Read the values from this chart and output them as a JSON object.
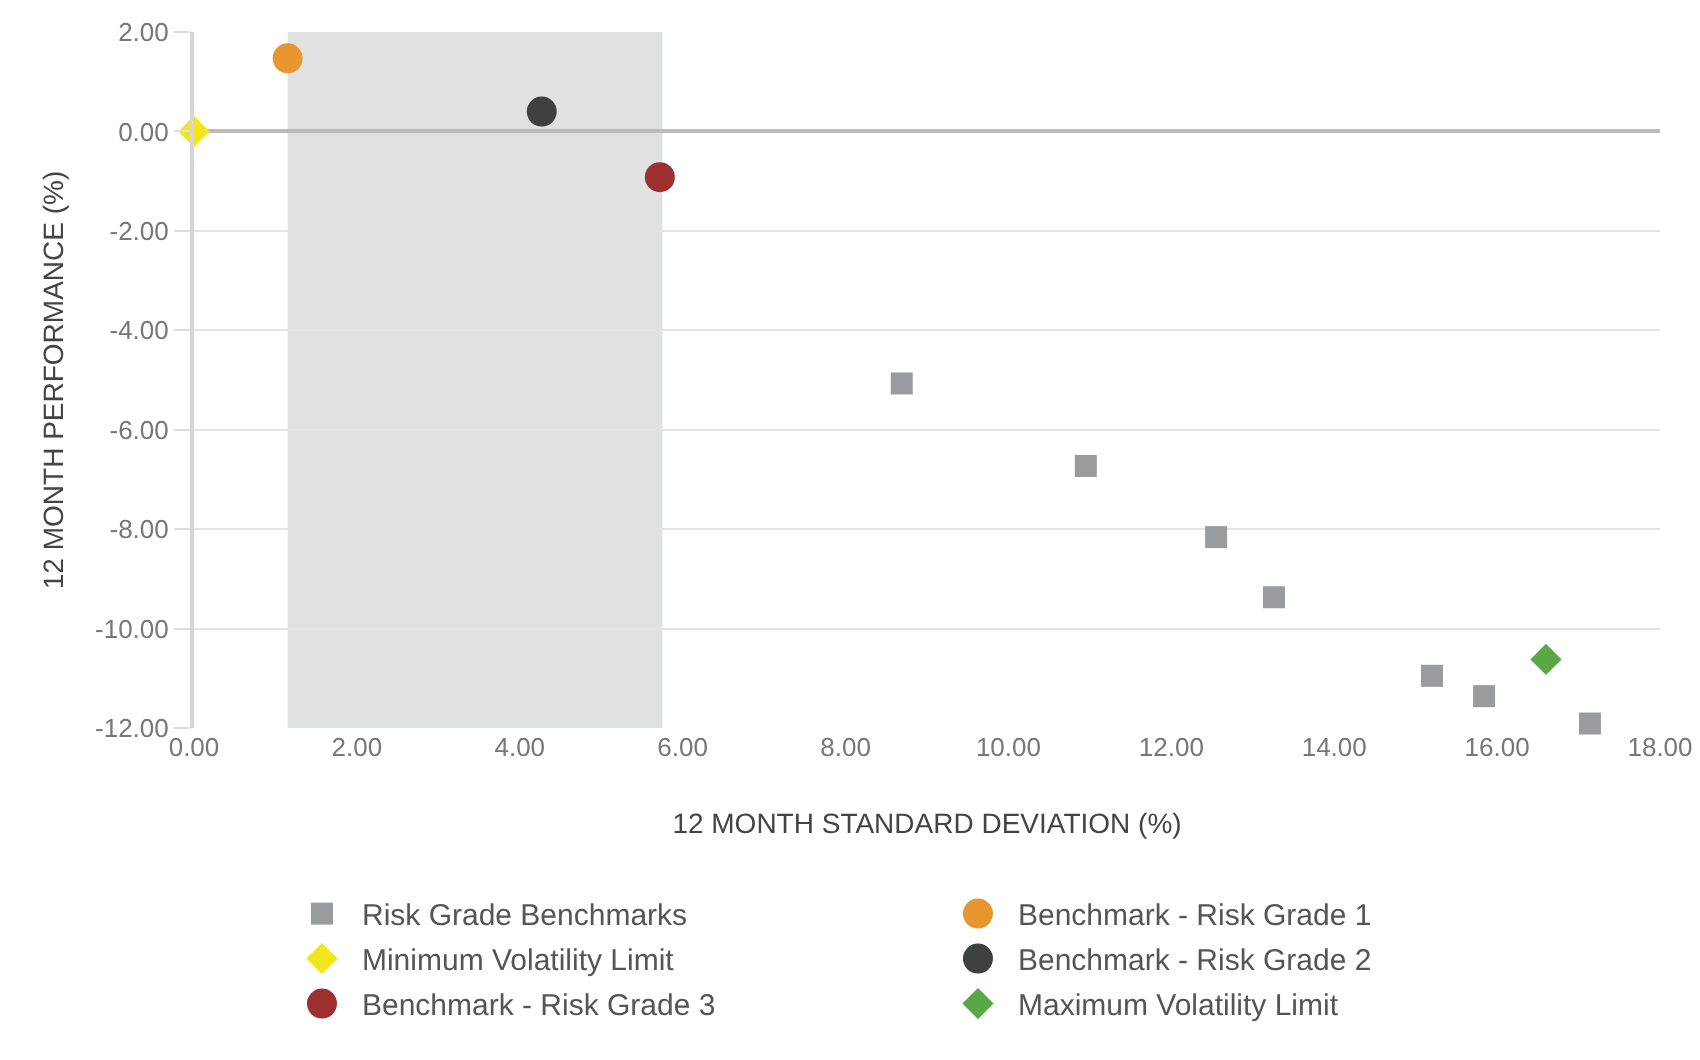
{
  "chart_data": {
    "type": "scatter",
    "xlabel": "12 MONTH STANDARD DEVIATION (%)",
    "ylabel": "12 MONTH PERFORMANCE (%)",
    "xlim": [
      0,
      18
    ],
    "ylim": [
      -12,
      2
    ],
    "xticks": [
      {
        "value": 0,
        "label": "0.00"
      },
      {
        "value": 2,
        "label": "2.00"
      },
      {
        "value": 4,
        "label": "4.00"
      },
      {
        "value": 6,
        "label": "6.00"
      },
      {
        "value": 8,
        "label": "8.00"
      },
      {
        "value": 10,
        "label": "10.00"
      },
      {
        "value": 12,
        "label": "12.00"
      },
      {
        "value": 14,
        "label": "14.00"
      },
      {
        "value": 16,
        "label": "16.00"
      },
      {
        "value": 18,
        "label": "18.00"
      }
    ],
    "yticks": [
      {
        "value": 2,
        "label": "2.00"
      },
      {
        "value": 0,
        "label": "0.00"
      },
      {
        "value": -2,
        "label": "-2.00"
      },
      {
        "value": -4,
        "label": "-4.00"
      },
      {
        "value": -6,
        "label": "-6.00"
      },
      {
        "value": -8,
        "label": "-8.00"
      },
      {
        "value": -10,
        "label": "-10.00"
      },
      {
        "value": -12,
        "label": "-12.00"
      }
    ],
    "grid": "y",
    "legend": "bottom",
    "bands": [
      {
        "axis": "x",
        "from": 1.15,
        "to": 5.75,
        "color": "#e0e1e1"
      }
    ],
    "series": [
      {
        "name": "Risk Grade Benchmarks",
        "color": "#9a9b9c",
        "marker": "square",
        "x": [
          8.69,
          10.95,
          12.55,
          13.26,
          15.2,
          15.84,
          17.14
        ],
        "values": [
          -5.07,
          -6.73,
          -8.16,
          -9.37,
          -10.95,
          -11.36,
          -11.91
        ]
      },
      {
        "name": "Benchmark - Risk Grade 1",
        "color": "#e8962e",
        "marker": "circle",
        "x": [
          1.15
        ],
        "values": [
          1.47
        ]
      },
      {
        "name": "Minimum Volatility Limit",
        "color": "#f2e51b",
        "marker": "diamond",
        "x": [
          0
        ],
        "values": [
          0
        ]
      },
      {
        "name": "Benchmark - Risk Grade 2",
        "color": "#3f4042",
        "marker": "circle",
        "x": [
          4.27
        ],
        "values": [
          0.4
        ]
      },
      {
        "name": "Benchmark - Risk Grade 3",
        "color": "#9e2f30",
        "marker": "circle",
        "x": [
          5.72
        ],
        "values": [
          -0.92
        ]
      },
      {
        "name": "Maximum Volatility Limit",
        "color": "#5aa748",
        "marker": "diamond",
        "x": [
          16.6
        ],
        "values": [
          -10.62
        ]
      }
    ]
  }
}
